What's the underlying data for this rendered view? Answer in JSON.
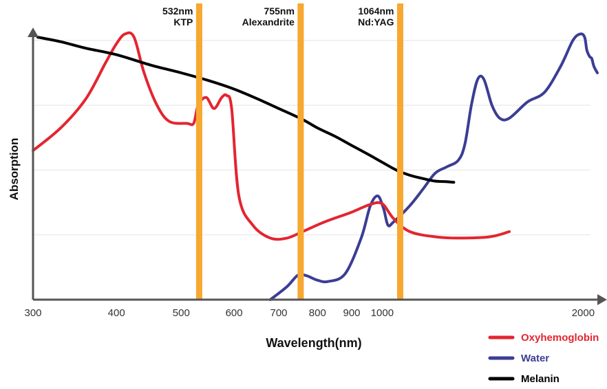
{
  "chart_data": {
    "type": "line",
    "title": "",
    "xlabel": "Wavelength(nm)",
    "ylabel": "Absorption",
    "x_scale": "log",
    "xlim": [
      300,
      2100
    ],
    "ylim": [
      0,
      4.2
    ],
    "x_ticks": [
      {
        "value": 300,
        "label": "300"
      },
      {
        "value": 400,
        "label": "400"
      },
      {
        "value": 500,
        "label": "500"
      },
      {
        "value": 600,
        "label": "600"
      },
      {
        "value": 700,
        "label": "700"
      },
      {
        "value": 800,
        "label": "800"
      },
      {
        "value": 900,
        "label": "900"
      },
      {
        "value": 1000,
        "label": "1000"
      },
      {
        "value": 2000,
        "label": "2000"
      }
    ],
    "grid": {
      "horizontal_lines": [
        1,
        2,
        3,
        4
      ]
    },
    "laser_lines": [
      {
        "wavelength": 532,
        "label_top": "532nm",
        "label_bottom": "KTP",
        "color": "#F7A830"
      },
      {
        "wavelength": 755,
        "label_top": "755nm",
        "label_bottom": "Alexandrite",
        "color": "#F7A830"
      },
      {
        "wavelength": 1064,
        "label_top": "1064nm",
        "label_bottom": "Nd:YAG",
        "color": "#F7A830"
      }
    ],
    "legend_position": "bottom-right",
    "series": [
      {
        "name": "Oxyhemoglobin",
        "color": "#E32530",
        "points": [
          [
            300,
            2.3
          ],
          [
            330,
            2.65
          ],
          [
            360,
            3.1
          ],
          [
            385,
            3.65
          ],
          [
            400,
            3.95
          ],
          [
            412,
            4.1
          ],
          [
            425,
            4.05
          ],
          [
            440,
            3.5
          ],
          [
            460,
            3.0
          ],
          [
            480,
            2.75
          ],
          [
            510,
            2.72
          ],
          [
            522,
            2.72
          ],
          [
            530,
            3.0
          ],
          [
            545,
            3.12
          ],
          [
            560,
            2.95
          ],
          [
            575,
            3.12
          ],
          [
            585,
            3.15
          ],
          [
            595,
            2.95
          ],
          [
            610,
            1.6
          ],
          [
            640,
            1.15
          ],
          [
            680,
            0.95
          ],
          [
            720,
            0.95
          ],
          [
            760,
            1.05
          ],
          [
            820,
            1.2
          ],
          [
            900,
            1.35
          ],
          [
            960,
            1.47
          ],
          [
            1000,
            1.48
          ],
          [
            1040,
            1.25
          ],
          [
            1100,
            1.05
          ],
          [
            1200,
            0.97
          ],
          [
            1300,
            0.95
          ],
          [
            1450,
            0.97
          ],
          [
            1550,
            1.05
          ]
        ]
      },
      {
        "name": "Water",
        "color": "#3B3D94",
        "points": [
          [
            680,
            0.0
          ],
          [
            720,
            0.2
          ],
          [
            748,
            0.38
          ],
          [
            770,
            0.37
          ],
          [
            800,
            0.3
          ],
          [
            830,
            0.28
          ],
          [
            880,
            0.4
          ],
          [
            930,
            0.95
          ],
          [
            960,
            1.45
          ],
          [
            985,
            1.6
          ],
          [
            1005,
            1.4
          ],
          [
            1020,
            1.15
          ],
          [
            1040,
            1.2
          ],
          [
            1100,
            1.45
          ],
          [
            1150,
            1.7
          ],
          [
            1200,
            1.95
          ],
          [
            1250,
            2.05
          ],
          [
            1300,
            2.15
          ],
          [
            1330,
            2.4
          ],
          [
            1360,
            3.0
          ],
          [
            1390,
            3.4
          ],
          [
            1420,
            3.4
          ],
          [
            1460,
            3.0
          ],
          [
            1500,
            2.8
          ],
          [
            1550,
            2.8
          ],
          [
            1650,
            3.05
          ],
          [
            1750,
            3.2
          ],
          [
            1850,
            3.6
          ],
          [
            1930,
            4.0
          ],
          [
            1980,
            4.1
          ],
          [
            2010,
            4.05
          ],
          [
            2025,
            3.85
          ],
          [
            2045,
            3.75
          ],
          [
            2060,
            3.72
          ],
          [
            2075,
            3.6
          ],
          [
            2100,
            3.5
          ]
        ]
      },
      {
        "name": "Melanin",
        "color": "#000000",
        "points": [
          [
            305,
            4.05
          ],
          [
            330,
            3.98
          ],
          [
            360,
            3.88
          ],
          [
            400,
            3.78
          ],
          [
            450,
            3.62
          ],
          [
            500,
            3.5
          ],
          [
            550,
            3.38
          ],
          [
            600,
            3.25
          ],
          [
            650,
            3.1
          ],
          [
            700,
            2.95
          ],
          [
            760,
            2.78
          ],
          [
            800,
            2.65
          ],
          [
            850,
            2.52
          ],
          [
            900,
            2.38
          ],
          [
            950,
            2.25
          ],
          [
            1000,
            2.12
          ],
          [
            1050,
            2.0
          ],
          [
            1100,
            1.92
          ],
          [
            1150,
            1.87
          ],
          [
            1200,
            1.83
          ],
          [
            1250,
            1.82
          ],
          [
            1280,
            1.81
          ]
        ]
      }
    ]
  }
}
